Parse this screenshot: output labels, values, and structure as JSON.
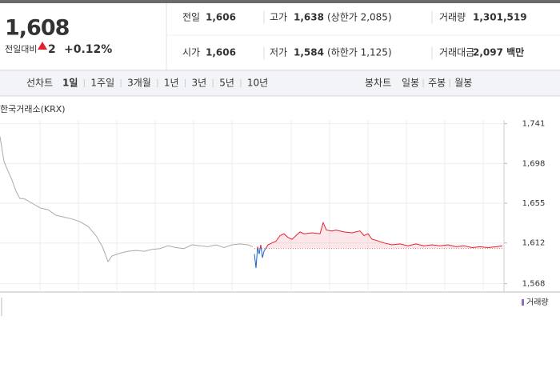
{
  "quote": {
    "price": "1,608",
    "change_label": "전일대비",
    "change": "2",
    "change_pct": "+0.12%",
    "color": "#e5202e"
  },
  "stats": [
    {
      "label": "전일",
      "value": "1,606"
    },
    {
      "label": "고가",
      "value": "1,638",
      "note": "(상한가 2,085)",
      "color": "#e5202e"
    },
    {
      "label": "거래량",
      "value": "1,301,519"
    },
    {
      "label": "시가",
      "value": "1,606"
    },
    {
      "label": "저가",
      "value": "1,584",
      "note": "(하한가 1,125)",
      "color": "#1a62c8"
    },
    {
      "label": "거래대금",
      "value": "2,097 백만"
    }
  ],
  "tabs": {
    "line_label": "선차트",
    "line": [
      "1일",
      "1주일",
      "3개월",
      "1년",
      "3년",
      "5년",
      "10년"
    ],
    "selected": 0,
    "candle_label": "봉차트",
    "candle": [
      "일봉",
      "주봉",
      "월봉"
    ]
  },
  "chart_data": {
    "type": "line",
    "source": "한국거래소(KRX)",
    "ylim": [
      1559,
      1745
    ],
    "yticks": [
      {
        "value": 1741,
        "label": "1,741"
      },
      {
        "value": 1698,
        "label": "1,698"
      },
      {
        "value": 1655,
        "label": "1,655"
      },
      {
        "value": 1612,
        "label": "1,612"
      },
      {
        "value": 1568,
        "label": "1,568"
      }
    ],
    "xlim": [
      0,
      630
    ],
    "baseline": 1606,
    "up_color": "#e5202e",
    "down_color": "#1a62c8",
    "series": [
      {
        "color": "#aaaaaa",
        "x": [
          0,
          5,
          10,
          15,
          20,
          25,
          30,
          40,
          50,
          60,
          70,
          80,
          90,
          100,
          110,
          120,
          128,
          135,
          140,
          150,
          160,
          170,
          180,
          190,
          200,
          210,
          220,
          230,
          240,
          250,
          260,
          270,
          280,
          290,
          300,
          310,
          316
        ],
        "values": [
          1727,
          1700,
          1690,
          1680,
          1668,
          1660,
          1660,
          1655,
          1650,
          1648,
          1642,
          1640,
          1638,
          1635,
          1630,
          1620,
          1608,
          1592,
          1598,
          1601,
          1603,
          1604,
          1603,
          1605,
          1606,
          1609,
          1607,
          1606,
          1610,
          1609,
          1608,
          1610,
          1607,
          1610,
          1611,
          1610,
          1608
        ]
      },
      {
        "split": true,
        "x": [
          318,
          320,
          322,
          324,
          326,
          328,
          330,
          335,
          340,
          345,
          350,
          355,
          360,
          365,
          370,
          375,
          380,
          390,
          400,
          404,
          408,
          415,
          420,
          430,
          440,
          450,
          455,
          460,
          465,
          470,
          480,
          490,
          500,
          510,
          520,
          530,
          540,
          550,
          560,
          570,
          580,
          590,
          600,
          610,
          620,
          628
        ],
        "values": [
          1600,
          1585,
          1608,
          1600,
          1610,
          1596,
          1603,
          1610,
          1612,
          1614,
          1620,
          1622,
          1618,
          1616,
          1620,
          1624,
          1622,
          1623,
          1622,
          1634,
          1626,
          1625,
          1626,
          1624,
          1623,
          1625,
          1620,
          1622,
          1616,
          1615,
          1612,
          1610,
          1611,
          1609,
          1611,
          1609,
          1610,
          1609,
          1610,
          1608,
          1609,
          1607,
          1608,
          1607,
          1608,
          1609
        ]
      }
    ]
  },
  "volume_legend": "거래량"
}
